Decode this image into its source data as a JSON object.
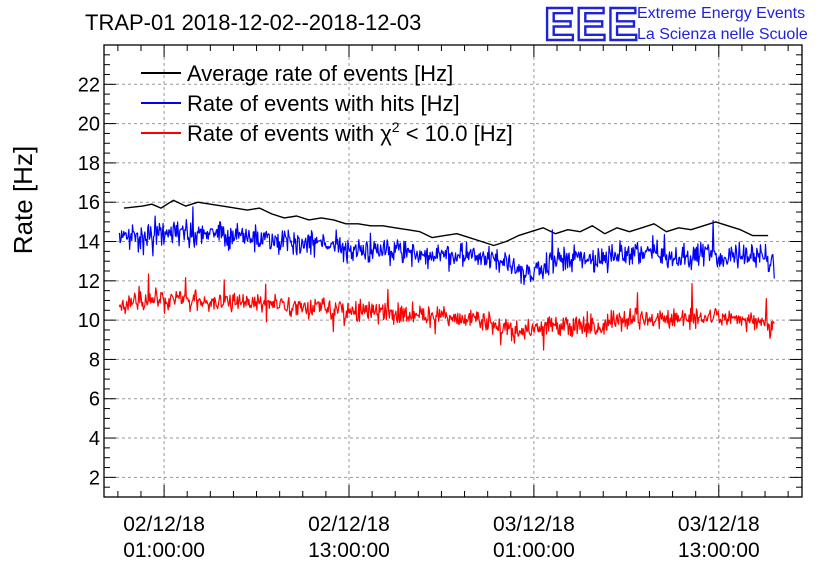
{
  "logo": {
    "mark": "EEE",
    "line1": "Extreme Energy Events",
    "line2": "La Scienza nelle Scuole",
    "color": "#1f22d9"
  },
  "chart_data": {
    "type": "line",
    "title": "TRAP-01 2018-12-02--2018-12-03",
    "ylabel": "Rate [Hz]",
    "xlabel": "",
    "ylim": [
      1,
      24
    ],
    "yticks": [
      2,
      4,
      6,
      8,
      10,
      12,
      14,
      16,
      18,
      20,
      22
    ],
    "grid": true,
    "legend_position": "top-left",
    "x_unit": "hours since 2018-12-02 00:00:00",
    "xlim": [
      -2.9,
      42.4
    ],
    "xticks": [
      {
        "x": 1,
        "line1": "02/12/18",
        "line2": "01:00:00"
      },
      {
        "x": 13,
        "line1": "02/12/18",
        "line2": "13:00:00"
      },
      {
        "x": 25,
        "line1": "03/12/18",
        "line2": "01:00:00"
      },
      {
        "x": 37,
        "line1": "03/12/18",
        "line2": "13:00:00"
      }
    ],
    "series": [
      {
        "name": "Average rate of events [Hz]",
        "legend_label": "Average rate of events [Hz]",
        "color": "#000000",
        "noise": 0,
        "x": [
          -1.6,
          -0.4,
          0.2,
          0.8,
          1.6,
          2.4,
          3.2,
          4.0,
          4.8,
          5.6,
          6.4,
          7.2,
          8.0,
          8.8,
          9.6,
          10.4,
          11.2,
          12.0,
          12.8,
          13.6,
          14.4,
          15.2,
          16.0,
          16.8,
          17.6,
          18.4,
          19.2,
          20.0,
          20.8,
          21.6,
          22.4,
          23.2,
          24.0,
          24.8,
          25.6,
          26.4,
          27.2,
          28.0,
          28.8,
          29.6,
          30.4,
          31.2,
          32.0,
          32.8,
          33.6,
          34.4,
          35.2,
          36.0,
          36.8,
          37.6,
          38.4,
          39.2,
          40.2
        ],
        "y": [
          15.7,
          15.8,
          15.9,
          15.7,
          16.1,
          15.8,
          16.0,
          15.9,
          15.8,
          15.7,
          15.6,
          15.7,
          15.4,
          15.2,
          15.3,
          15.1,
          15.2,
          15.1,
          14.9,
          14.9,
          14.8,
          14.8,
          14.7,
          14.6,
          14.5,
          14.2,
          14.3,
          14.4,
          14.2,
          14.0,
          13.8,
          14.0,
          14.3,
          14.5,
          14.7,
          14.4,
          14.6,
          14.5,
          14.8,
          14.4,
          14.7,
          14.5,
          14.7,
          14.9,
          14.5,
          14.7,
          14.6,
          14.8,
          15.0,
          14.8,
          14.6,
          14.3,
          14.3
        ]
      },
      {
        "name": "Rate of events with hits [Hz]",
        "legend_label": "Rate of events with hits [Hz]",
        "color": "#0000ff",
        "noise": 0.55,
        "x": [
          -1.9,
          0.0,
          2.0,
          4.0,
          6.0,
          8.0,
          10.0,
          12.0,
          14.0,
          16.0,
          18.0,
          20.0,
          22.0,
          24.0,
          25.0,
          26.0,
          28.0,
          29.0,
          30.0,
          32.0,
          34.0,
          36.0,
          38.0,
          40.0,
          40.6
        ],
        "y": [
          14.2,
          14.3,
          14.5,
          14.5,
          14.2,
          14.2,
          14.0,
          13.8,
          13.6,
          13.5,
          13.3,
          13.3,
          13.2,
          12.6,
          12.4,
          13.0,
          13.2,
          13.0,
          13.3,
          13.4,
          13.2,
          13.3,
          13.3,
          13.2,
          12.8
        ]
      },
      {
        "name": "Rate of events with chi2 < 10.0 [Hz]",
        "legend_label": "Rate of events with",
        "legend_symbol": "χ",
        "legend_sup": "2",
        "legend_tail": "< 10.0 [Hz]",
        "color": "#ff0000",
        "noise": 0.45,
        "x": [
          -1.9,
          0.0,
          2.0,
          4.0,
          6.0,
          8.0,
          10.0,
          12.0,
          14.0,
          16.0,
          18.0,
          20.0,
          22.0,
          23.0,
          24.0,
          25.0,
          26.0,
          28.0,
          29.0,
          30.0,
          32.0,
          34.0,
          36.0,
          38.0,
          40.0,
          40.6
        ],
        "y": [
          10.8,
          11.0,
          11.1,
          11.0,
          10.9,
          10.8,
          10.7,
          10.6,
          10.5,
          10.3,
          10.2,
          10.1,
          10.0,
          9.6,
          9.4,
          9.5,
          9.7,
          9.7,
          9.5,
          9.9,
          10.1,
          10.0,
          10.2,
          10.1,
          9.9,
          9.5
        ]
      }
    ]
  }
}
